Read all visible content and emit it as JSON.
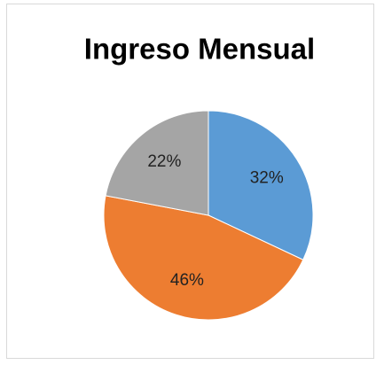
{
  "chart_data": {
    "type": "pie",
    "title": "Ingreso Mensual",
    "values": [
      32,
      46,
      22
    ],
    "value_labels": [
      "32%",
      "46%",
      "22%"
    ],
    "colors": [
      "#5b9bd5",
      "#ed7d31",
      "#a5a5a5"
    ]
  }
}
